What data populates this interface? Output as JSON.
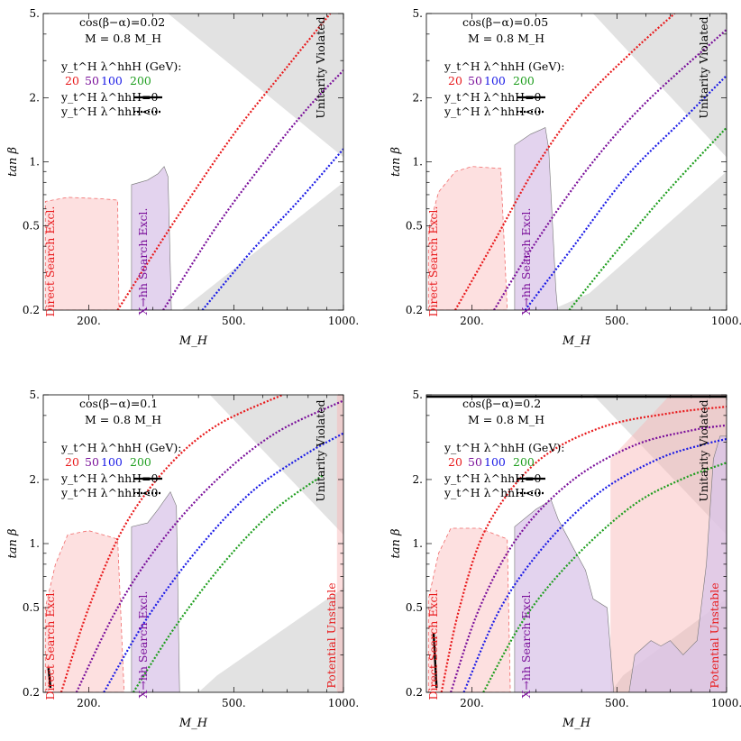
{
  "chart_data": [
    {
      "type": "line",
      "panel": 1,
      "annotation": {
        "cos_label": "cos(β−α)=0.02",
        "mass_label": "M = 0.8 M_H"
      },
      "xlabel": "M_H",
      "ylabel": "tan β",
      "x_scale": "log",
      "y_scale": "log",
      "xlim": [
        150,
        1000
      ],
      "ylim": [
        0.2,
        5
      ],
      "x_ticks": [
        "200.",
        "500.",
        "1000."
      ],
      "y_ticks": [
        "0.2",
        "0.5",
        "1.",
        "2.",
        "5."
      ],
      "legend": {
        "title": "y_t^H λ^hhH (GeV):",
        "entries": [
          "20",
          "50",
          "100",
          "200"
        ],
        "solid_label": "y_t^H λ^hhH=0",
        "dashed_label": "y_t^H λ^hhH<0"
      },
      "series": [
        {
          "name": "20",
          "color": "#e8191b",
          "points": [
            [
              240,
              0.2
            ],
            [
              350,
              0.55
            ],
            [
              500,
              1.35
            ],
            [
              700,
              2.8
            ],
            [
              920,
              5.0
            ]
          ]
        },
        {
          "name": "50",
          "color": "#7a0f9a",
          "points": [
            [
              320,
              0.2
            ],
            [
              450,
              0.5
            ],
            [
              620,
              1.05
            ],
            [
              800,
              1.8
            ],
            [
              1000,
              2.7
            ]
          ]
        },
        {
          "name": "100",
          "color": "#1a1ae6",
          "points": [
            [
              410,
              0.2
            ],
            [
              560,
              0.38
            ],
            [
              750,
              0.65
            ],
            [
              1000,
              1.15
            ]
          ]
        }
      ],
      "regions": {
        "unitarity_label": "Unitarity Violated",
        "direct_label": "Direct Search Excl.",
        "xhh_label": "X→hh Search Excl."
      }
    },
    {
      "type": "line",
      "panel": 2,
      "annotation": {
        "cos_label": "cos(β−α)=0.05",
        "mass_label": "M = 0.8 M_H"
      },
      "xlabel": "M_H",
      "ylabel": "tan β",
      "x_scale": "log",
      "y_scale": "log",
      "xlim": [
        150,
        1000
      ],
      "ylim": [
        0.2,
        5
      ],
      "x_ticks": [
        "200.",
        "500.",
        "1000."
      ],
      "y_ticks": [
        "0.2",
        "0.5",
        "1.",
        "2.",
        "5."
      ],
      "legend": {
        "title": "y_t^H λ^hhH (GeV):",
        "entries": [
          "20",
          "50",
          "100",
          "200"
        ],
        "solid_label": "y_t^H λ^hhH=0",
        "dashed_label": "y_t^H λ^hhH<0"
      },
      "series": [
        {
          "name": "20",
          "color": "#e8191b",
          "points": [
            [
              180,
              0.2
            ],
            [
              230,
              0.42
            ],
            [
              300,
              0.95
            ],
            [
              400,
              1.9
            ],
            [
              550,
              3.3
            ],
            [
              720,
              5.0
            ]
          ]
        },
        {
          "name": "50",
          "color": "#7a0f9a",
          "points": [
            [
              230,
              0.2
            ],
            [
              300,
              0.42
            ],
            [
              420,
              0.95
            ],
            [
              600,
              1.9
            ],
            [
              1000,
              4.2
            ]
          ]
        },
        {
          "name": "100",
          "color": "#1a1ae6",
          "points": [
            [
              280,
              0.2
            ],
            [
              380,
              0.4
            ],
            [
              530,
              0.85
            ],
            [
              750,
              1.55
            ],
            [
              1000,
              2.55
            ]
          ]
        },
        {
          "name": "200",
          "color": "#1e9e1e",
          "points": [
            [
              370,
              0.2
            ],
            [
              500,
              0.38
            ],
            [
              700,
              0.75
            ],
            [
              1000,
              1.45
            ]
          ]
        }
      ],
      "regions": {
        "unitarity_label": "Unitarity Violated",
        "direct_label": "Direct Search Excl.",
        "xhh_label": "X→hh Search Excl."
      }
    },
    {
      "type": "line",
      "panel": 3,
      "annotation": {
        "cos_label": "cos(β−α)=0.1",
        "mass_label": "M = 0.8 M_H"
      },
      "xlabel": "M_H",
      "ylabel": "tan β",
      "x_scale": "log",
      "y_scale": "log",
      "xlim": [
        150,
        1000
      ],
      "ylim": [
        0.2,
        5
      ],
      "x_ticks": [
        "200.",
        "500.",
        "1000."
      ],
      "y_ticks": [
        "0.2",
        "0.5",
        "1.",
        "2.",
        "5."
      ],
      "legend": {
        "title": "y_t^H λ^hhH (GeV):",
        "entries": [
          "20",
          "50",
          "100",
          "200"
        ],
        "solid_label": "y_t^H λ^hhH=0",
        "dashed_label": "y_t^H λ^hhH<0"
      },
      "series": [
        {
          "name": "20",
          "color": "#e8191b",
          "points": [
            [
              168,
              0.2
            ],
            [
              200,
              0.5
            ],
            [
              250,
              1.2
            ],
            [
              330,
              2.3
            ],
            [
              450,
              3.6
            ],
            [
              680,
              5.0
            ]
          ]
        },
        {
          "name": "50",
          "color": "#7a0f9a",
          "points": [
            [
              185,
              0.2
            ],
            [
              240,
              0.5
            ],
            [
              320,
              1.05
            ],
            [
              450,
              2.0
            ],
            [
              650,
              3.3
            ],
            [
              1000,
              4.7
            ]
          ]
        },
        {
          "name": "100",
          "color": "#1a1ae6",
          "points": [
            [
              220,
              0.2
            ],
            [
              290,
              0.45
            ],
            [
              400,
              0.95
            ],
            [
              560,
              1.75
            ],
            [
              780,
              2.6
            ],
            [
              1000,
              3.3
            ]
          ]
        },
        {
          "name": "200",
          "color": "#1e9e1e",
          "points": [
            [
              265,
              0.2
            ],
            [
              350,
              0.42
            ],
            [
              480,
              0.85
            ],
            [
              650,
              1.45
            ],
            [
              880,
              2.1
            ]
          ]
        }
      ],
      "solid_segment": {
        "points": [
          [
            155,
            0.26
          ],
          [
            157,
            0.21
          ]
        ]
      },
      "regions": {
        "unitarity_label": "Unitarity Violated",
        "direct_label": "Direct Search Excl.",
        "xhh_label": "X→hh Search Excl.",
        "unstable_label": "Potential Unstable"
      }
    },
    {
      "type": "line",
      "panel": 4,
      "annotation": {
        "cos_label": "cos(β−α)=0.2",
        "mass_label": "M = 0.8 M_H"
      },
      "xlabel": "M_H",
      "ylabel": "tan β",
      "x_scale": "log",
      "y_scale": "log",
      "xlim": [
        150,
        1000
      ],
      "ylim": [
        0.2,
        5
      ],
      "x_ticks": [
        "200.",
        "500.",
        "1000."
      ],
      "y_ticks": [
        "0.2",
        "0.5",
        "1.",
        "2.",
        "5."
      ],
      "legend": {
        "title": "y_t^H λ^hhH (GeV):",
        "entries": [
          "20",
          "50",
          "100",
          "200"
        ],
        "solid_label": "y_t^H λ^hhH=0",
        "dashed_label": "y_t^H λ^hhH<0"
      },
      "series": [
        {
          "name": "20",
          "color": "#e8191b",
          "points": [
            [
              165,
              0.2
            ],
            [
              185,
              0.5
            ],
            [
              220,
              1.2
            ],
            [
              300,
              2.4
            ],
            [
              450,
              3.5
            ],
            [
              700,
              4.1
            ],
            [
              1000,
              4.4
            ]
          ]
        },
        {
          "name": "50",
          "color": "#7a0f9a",
          "points": [
            [
              175,
              0.2
            ],
            [
              210,
              0.5
            ],
            [
              270,
              1.1
            ],
            [
              380,
              2.0
            ],
            [
              560,
              2.9
            ],
            [
              800,
              3.4
            ],
            [
              1000,
              3.6
            ]
          ]
        },
        {
          "name": "100",
          "color": "#1a1ae6",
          "points": [
            [
              190,
              0.2
            ],
            [
              240,
              0.5
            ],
            [
              320,
              1.0
            ],
            [
              450,
              1.75
            ],
            [
              650,
              2.5
            ],
            [
              850,
              2.9
            ],
            [
              1000,
              3.1
            ]
          ]
        },
        {
          "name": "200",
          "color": "#1e9e1e",
          "points": [
            [
              215,
              0.2
            ],
            [
              280,
              0.45
            ],
            [
              380,
              0.85
            ],
            [
              550,
              1.5
            ],
            [
              750,
              2.0
            ],
            [
              1000,
              2.4
            ]
          ]
        }
      ],
      "solid_segment": {
        "points": [
          [
            157,
            0.38
          ],
          [
            160,
            0.21
          ]
        ]
      },
      "top_line": {
        "y": 4.9
      },
      "regions": {
        "unitarity_label": "Unitarity Violated",
        "direct_label": "Direct Search Excl.",
        "xhh_label": "X→hh Search Excl.",
        "unstable_label": "Potential Unstable"
      }
    }
  ]
}
